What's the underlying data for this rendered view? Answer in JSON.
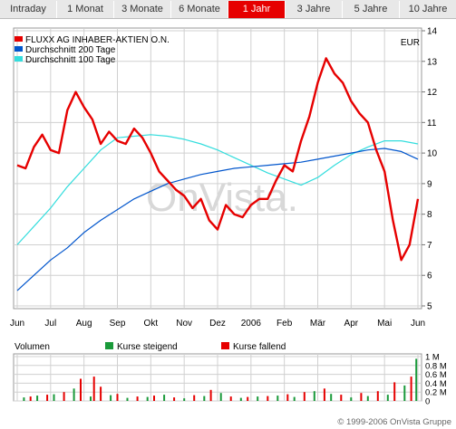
{
  "tabs": [
    {
      "label": "Intraday"
    },
    {
      "label": "1 Monat"
    },
    {
      "label": "3 Monate"
    },
    {
      "label": "6 Monate"
    },
    {
      "label": "1 Jahr",
      "active": true
    },
    {
      "label": "3 Jahre"
    },
    {
      "label": "5 Jahre"
    },
    {
      "label": "10 Jahre"
    }
  ],
  "colors": {
    "price": "#e60000",
    "ma200": "#0055cc",
    "ma100": "#33dddd",
    "vol_up": "#1a9a3a",
    "vol_down": "#e60000",
    "active_tab": "#e60000",
    "grid": "#d0d0d0"
  },
  "chart_data": [
    {
      "type": "line",
      "currency": "EUR",
      "legend_placement": "top-left",
      "grid": true,
      "watermark": "OnVista.",
      "x_labels": [
        "Jun",
        "Jul",
        "Aug",
        "Sep",
        "Okt",
        "Nov",
        "Dez",
        "2006",
        "Feb",
        "Mär",
        "Apr",
        "Mai",
        "Jun"
      ],
      "ylim": [
        5,
        14
      ],
      "yticks": [
        5,
        6,
        7,
        8,
        9,
        10,
        11,
        12,
        13,
        14
      ],
      "series": [
        {
          "name": "FLUXX AG INHABER-AKTIEN O.N.",
          "color": "#e60000",
          "x": [
            0,
            0.25,
            0.5,
            0.75,
            1,
            1.25,
            1.5,
            1.75,
            2,
            2.25,
            2.5,
            2.75,
            3,
            3.25,
            3.5,
            3.75,
            4,
            4.25,
            4.5,
            4.75,
            5,
            5.25,
            5.5,
            5.75,
            6,
            6.25,
            6.5,
            6.75,
            7,
            7.25,
            7.5,
            7.75,
            8,
            8.25,
            8.5,
            8.75,
            9,
            9.25,
            9.5,
            9.75,
            10,
            10.25,
            10.5,
            10.75,
            11,
            11.25,
            11.5,
            11.75,
            12
          ],
          "values": [
            9.6,
            9.5,
            10.2,
            10.6,
            10.1,
            10.0,
            11.4,
            12.0,
            11.5,
            11.1,
            10.3,
            10.7,
            10.4,
            10.3,
            10.8,
            10.5,
            10.0,
            9.4,
            9.1,
            8.8,
            8.6,
            8.2,
            8.5,
            7.8,
            7.5,
            8.3,
            8.0,
            7.9,
            8.3,
            8.5,
            8.5,
            9.1,
            9.6,
            9.4,
            10.4,
            11.2,
            12.3,
            13.1,
            12.6,
            12.3,
            11.7,
            11.3,
            11.0,
            10.1,
            9.4,
            7.8,
            6.5,
            7.0,
            8.5
          ]
        },
        {
          "name": "Durchschnitt 200 Tage",
          "color": "#0055cc",
          "x": [
            0,
            0.5,
            1,
            1.5,
            2,
            2.5,
            3,
            3.5,
            4,
            4.5,
            5,
            5.5,
            6,
            6.5,
            7,
            7.5,
            8,
            8.5,
            9,
            9.5,
            10,
            10.5,
            11,
            11.5,
            12
          ],
          "values": [
            5.5,
            6.0,
            6.5,
            6.9,
            7.4,
            7.8,
            8.15,
            8.5,
            8.75,
            9.0,
            9.15,
            9.3,
            9.4,
            9.5,
            9.55,
            9.6,
            9.65,
            9.7,
            9.8,
            9.9,
            10.0,
            10.1,
            10.15,
            10.05,
            9.8
          ]
        },
        {
          "name": "Durchschnitt 100 Tage",
          "color": "#33dddd",
          "x": [
            0,
            0.5,
            1,
            1.5,
            2,
            2.5,
            3,
            3.5,
            4,
            4.5,
            5,
            5.5,
            6,
            6.5,
            7,
            7.5,
            8,
            8.5,
            9,
            9.5,
            10,
            10.5,
            11,
            11.5,
            12
          ],
          "values": [
            7.0,
            7.6,
            8.2,
            8.9,
            9.5,
            10.1,
            10.5,
            10.55,
            10.6,
            10.55,
            10.45,
            10.3,
            10.1,
            9.85,
            9.6,
            9.35,
            9.15,
            8.95,
            9.2,
            9.6,
            9.95,
            10.2,
            10.4,
            10.4,
            10.3
          ]
        }
      ]
    },
    {
      "type": "bar",
      "title": "Volumen",
      "unit": "M",
      "ylim": [
        0,
        1
      ],
      "ytick_labels": [
        "1 M",
        "0.8 M",
        "0.6 M",
        "0.4 M",
        "0.2 M",
        "0"
      ],
      "ytick_values": [
        1,
        0.8,
        0.6,
        0.4,
        0.2,
        0
      ],
      "series": [
        {
          "name": "Kurse steigend",
          "color": "#1a9a3a",
          "x": [
            0.2,
            0.6,
            1.1,
            1.7,
            2.2,
            2.8,
            3.3,
            3.9,
            4.4,
            5.0,
            5.6,
            6.1,
            6.7,
            7.2,
            7.8,
            8.3,
            8.9,
            9.4,
            10.0,
            10.5,
            11.1,
            11.6,
            11.95
          ],
          "values": [
            0.08,
            0.12,
            0.15,
            0.28,
            0.1,
            0.13,
            0.07,
            0.09,
            0.14,
            0.06,
            0.11,
            0.18,
            0.07,
            0.1,
            0.12,
            0.09,
            0.22,
            0.16,
            0.08,
            0.11,
            0.14,
            0.35,
            0.95
          ]
        },
        {
          "name": "Kurse fallend",
          "color": "#e60000",
          "x": [
            0.4,
            0.9,
            1.4,
            1.9,
            2.3,
            2.5,
            3.0,
            3.6,
            4.1,
            4.7,
            5.3,
            5.8,
            6.4,
            6.9,
            7.5,
            8.1,
            8.6,
            9.2,
            9.7,
            10.3,
            10.8,
            11.3,
            11.8
          ],
          "values": [
            0.1,
            0.14,
            0.2,
            0.5,
            0.55,
            0.32,
            0.16,
            0.1,
            0.12,
            0.08,
            0.13,
            0.25,
            0.1,
            0.09,
            0.11,
            0.15,
            0.2,
            0.28,
            0.14,
            0.18,
            0.22,
            0.42,
            0.55
          ]
        }
      ]
    }
  ],
  "footer": {
    "copyright": "© 1999-2006 OnVista Gruppe"
  }
}
